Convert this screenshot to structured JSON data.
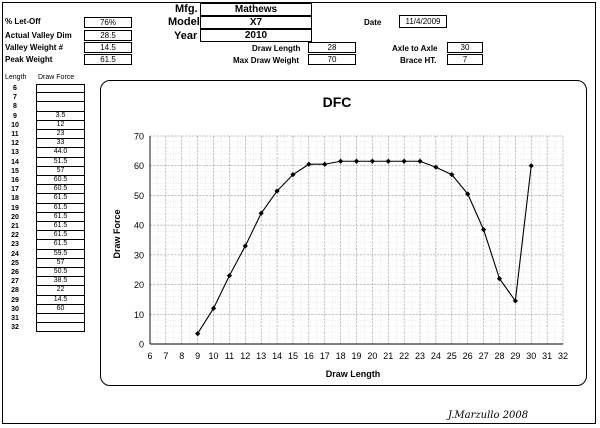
{
  "header": {
    "let_off_label": "% Let-Off",
    "let_off_value": "76%",
    "actual_valley_label": "Actual Valley Dim",
    "actual_valley_value": "28.5",
    "valley_weight_label": "Valley Weight #",
    "valley_weight_value": "14.5",
    "peak_weight_label": "Peak Weight",
    "peak_weight_value": "61.5",
    "mfg_label": "Mfg.",
    "mfg_value": "Mathews",
    "model_label": "Model",
    "model_value": "X7",
    "year_label": "Year",
    "year_value": "2010",
    "date_label": "Date",
    "date_value": "11/4/2009",
    "draw_length_label": "Draw Length",
    "draw_length_value": "28",
    "max_draw_weight_label": "Max Draw Weight",
    "max_draw_weight_value": "70",
    "axle_label": "Axle to Axle",
    "axle_value": "30",
    "brace_label": "Brace HT.",
    "brace_value": "7"
  },
  "table": {
    "length_header": "Length",
    "force_header": "Draw Force",
    "rows": [
      {
        "length": "6",
        "force": ""
      },
      {
        "length": "7",
        "force": ""
      },
      {
        "length": "8",
        "force": ""
      },
      {
        "length": "9",
        "force": "3.5"
      },
      {
        "length": "10",
        "force": "12"
      },
      {
        "length": "11",
        "force": "23"
      },
      {
        "length": "12",
        "force": "33"
      },
      {
        "length": "13",
        "force": "44.0"
      },
      {
        "length": "14",
        "force": "51.5"
      },
      {
        "length": "15",
        "force": "57"
      },
      {
        "length": "16",
        "force": "60.5"
      },
      {
        "length": "17",
        "force": "60.5"
      },
      {
        "length": "18",
        "force": "61.5"
      },
      {
        "length": "19",
        "force": "61.5"
      },
      {
        "length": "20",
        "force": "61.5"
      },
      {
        "length": "21",
        "force": "61.5"
      },
      {
        "length": "22",
        "force": "61.5"
      },
      {
        "length": "23",
        "force": "61.5"
      },
      {
        "length": "24",
        "force": "59.5"
      },
      {
        "length": "25",
        "force": "57"
      },
      {
        "length": "26",
        "force": "50.5"
      },
      {
        "length": "27",
        "force": "38.5"
      },
      {
        "length": "28",
        "force": "22"
      },
      {
        "length": "29",
        "force": "14.5"
      },
      {
        "length": "30",
        "force": "60"
      },
      {
        "length": "31",
        "force": ""
      },
      {
        "length": "32",
        "force": ""
      }
    ]
  },
  "chart_data": {
    "type": "line",
    "title": "DFC",
    "xlabel": "Draw Length",
    "ylabel": "Draw Force",
    "xlim": [
      6,
      32
    ],
    "ylim": [
      0,
      70
    ],
    "x_ticks": [
      "6",
      "7",
      "8",
      "9",
      "10",
      "11",
      "12",
      "13",
      "14",
      "15",
      "16",
      "17",
      "18",
      "19",
      "20",
      "21",
      "22",
      "23",
      "24",
      "25",
      "26",
      "27",
      "28",
      "29",
      "30",
      "31",
      "32"
    ],
    "y_ticks": [
      "0",
      "10",
      "20",
      "30",
      "40",
      "50",
      "60",
      "70"
    ],
    "grid": true,
    "x": [
      9,
      10,
      11,
      12,
      13,
      14,
      15,
      16,
      17,
      18,
      19,
      20,
      21,
      22,
      23,
      24,
      25,
      26,
      27,
      28,
      29,
      30
    ],
    "values": [
      3.5,
      12,
      23,
      33,
      44,
      51.5,
      57,
      60.5,
      60.5,
      61.5,
      61.5,
      61.5,
      61.5,
      61.5,
      61.5,
      59.5,
      57,
      50.5,
      38.5,
      22,
      14.5,
      60
    ],
    "line_color": "#000000"
  },
  "signature": "J.Marzullo 2008"
}
